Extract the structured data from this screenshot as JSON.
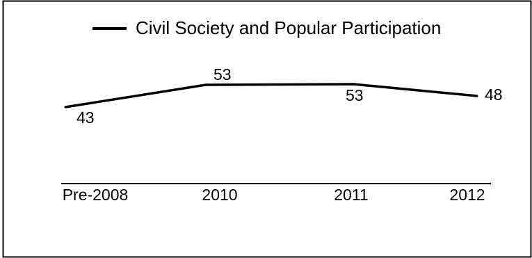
{
  "chart_data": {
    "type": "line",
    "categories": [
      "Pre-2008",
      "2010",
      "2011",
      "2012"
    ],
    "series": [
      {
        "name": "Civil Society and Popular Participation",
        "values": [
          43,
          53,
          53,
          48
        ]
      }
    ],
    "data_labels": [
      "43",
      "53",
      "53",
      "48"
    ],
    "legend": {
      "placement": "top-center"
    },
    "grid": false,
    "colors": {
      "line": "#000000",
      "frame": "#000000"
    }
  }
}
